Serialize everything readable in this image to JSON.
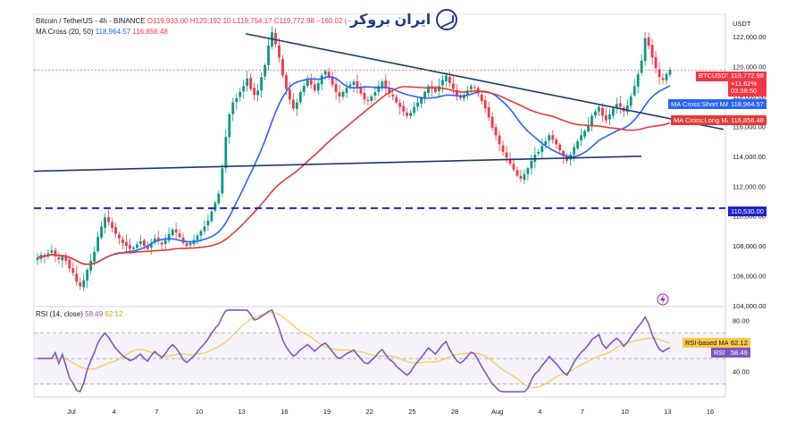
{
  "header": {
    "symbol": "Bitcoin / TetherUS - 4h - BINANCE",
    "ohlc": "O119,933.00 H120,192.10 L119,754.17 C119,772.98 −160.02 (−",
    "ma_title": "MA Cross (20, 50)",
    "ma_short_val": "118,964.57",
    "ma_long_val": "116,856.48",
    "rsi_title": "RSI (14, close)",
    "rsi_val": "58.49",
    "rsi_ma_val": "62.12",
    "currency": "USDT"
  },
  "logo_text": "ایران بروکر",
  "colors": {
    "up": "#089981",
    "down": "#f23645",
    "short_ma": "#2962ff",
    "long_ma": "#e53935",
    "trend": "#1a3a6b",
    "support": "#1e22c8",
    "rsi": "#7e57c2",
    "rsi_ma": "#f7c948"
  },
  "labels": {
    "price_tag": [
      "BTCUSDT",
      "119,772.98",
      "+11.62%",
      "03:38:50"
    ],
    "short_ma_tag": [
      "MA Cross:Short MA",
      "118,964.57"
    ],
    "long_ma_tag": [
      "MA Cross:Long MA",
      "116,856.48"
    ],
    "support_tag": "110,530.00",
    "rsi_ma_tag": [
      "RSI-based MA",
      "62.12"
    ],
    "rsi_tag": [
      "RSI",
      "58.49"
    ]
  },
  "chart_data": [
    {
      "type": "candlestick",
      "ylim": [
        104000,
        123500
      ],
      "y_ticks": [
        104000,
        106000,
        108000,
        110000,
        112000,
        114000,
        116000,
        118000,
        120000,
        122000
      ],
      "x_tick_labels": [
        "Jul",
        "4",
        "7",
        "10",
        "13",
        "16",
        "19",
        "22",
        "25",
        "28",
        "Aug",
        "4",
        "7",
        "10",
        "13",
        "16"
      ],
      "close_series": [
        107200,
        107400,
        107300,
        107500,
        107700,
        107300,
        107100,
        107300,
        107000,
        106500,
        106200,
        105600,
        105300,
        105700,
        106400,
        107000,
        107600,
        108600,
        109300,
        109900,
        109600,
        109200,
        108800,
        108500,
        108200,
        108000,
        107800,
        107900,
        108100,
        108300,
        108000,
        107800,
        108200,
        108500,
        108300,
        108100,
        108400,
        108800,
        109100,
        108900,
        108600,
        108200,
        108000,
        108200,
        108400,
        108700,
        109000,
        109300,
        109700,
        110300,
        110900,
        111500,
        113200,
        115300,
        116800,
        117600,
        117900,
        118300,
        118700,
        119200,
        118500,
        118100,
        118400,
        119300,
        120100,
        121400,
        122300,
        121500,
        120600,
        119400,
        118500,
        117800,
        117200,
        117600,
        118300,
        118700,
        119200,
        118800,
        118400,
        118900,
        119400,
        119700,
        119300,
        118800,
        118300,
        118000,
        118300,
        118600,
        118800,
        119000,
        118600,
        118200,
        117800,
        117700,
        118000,
        118300,
        118700,
        119000,
        118600,
        118200,
        118000,
        117600,
        117300,
        117000,
        116700,
        116900,
        117300,
        117600,
        117900,
        118300,
        118700,
        118500,
        118300,
        118700,
        119100,
        119400,
        118900,
        118500,
        118100,
        117900,
        118100,
        118400,
        118700,
        118600,
        118200,
        117700,
        117200,
        116600,
        115900,
        115400,
        114800,
        114300,
        113900,
        113500,
        113100,
        112700,
        112500,
        112800,
        113200,
        113700,
        114100,
        114300,
        114700,
        115000,
        115400,
        115100,
        114800,
        114400,
        114000,
        113700,
        114100,
        114600,
        115000,
        115400,
        115700,
        116100,
        116700,
        117000,
        117300,
        116700,
        116400,
        116800,
        117200,
        117500,
        117300,
        117000,
        117400,
        118000,
        118700,
        119500,
        120400,
        121900,
        121400,
        120600,
        119900,
        119300,
        119100,
        119500,
        119773
      ],
      "ma_short": {
        "name": "MA Cross:Short MA",
        "last": 118964.57
      },
      "ma_long": {
        "name": "MA Cross:Long MA",
        "last": 116856.48
      },
      "support_level": 110530.0,
      "last_price": 119772.98
    },
    {
      "type": "line",
      "title": "RSI (14, close)",
      "ylim": [
        20,
        90
      ],
      "y_ticks": [
        40,
        80
      ],
      "bands": [
        30,
        70
      ],
      "last_rsi": 58.49,
      "last_rsi_ma": 62.12
    }
  ]
}
